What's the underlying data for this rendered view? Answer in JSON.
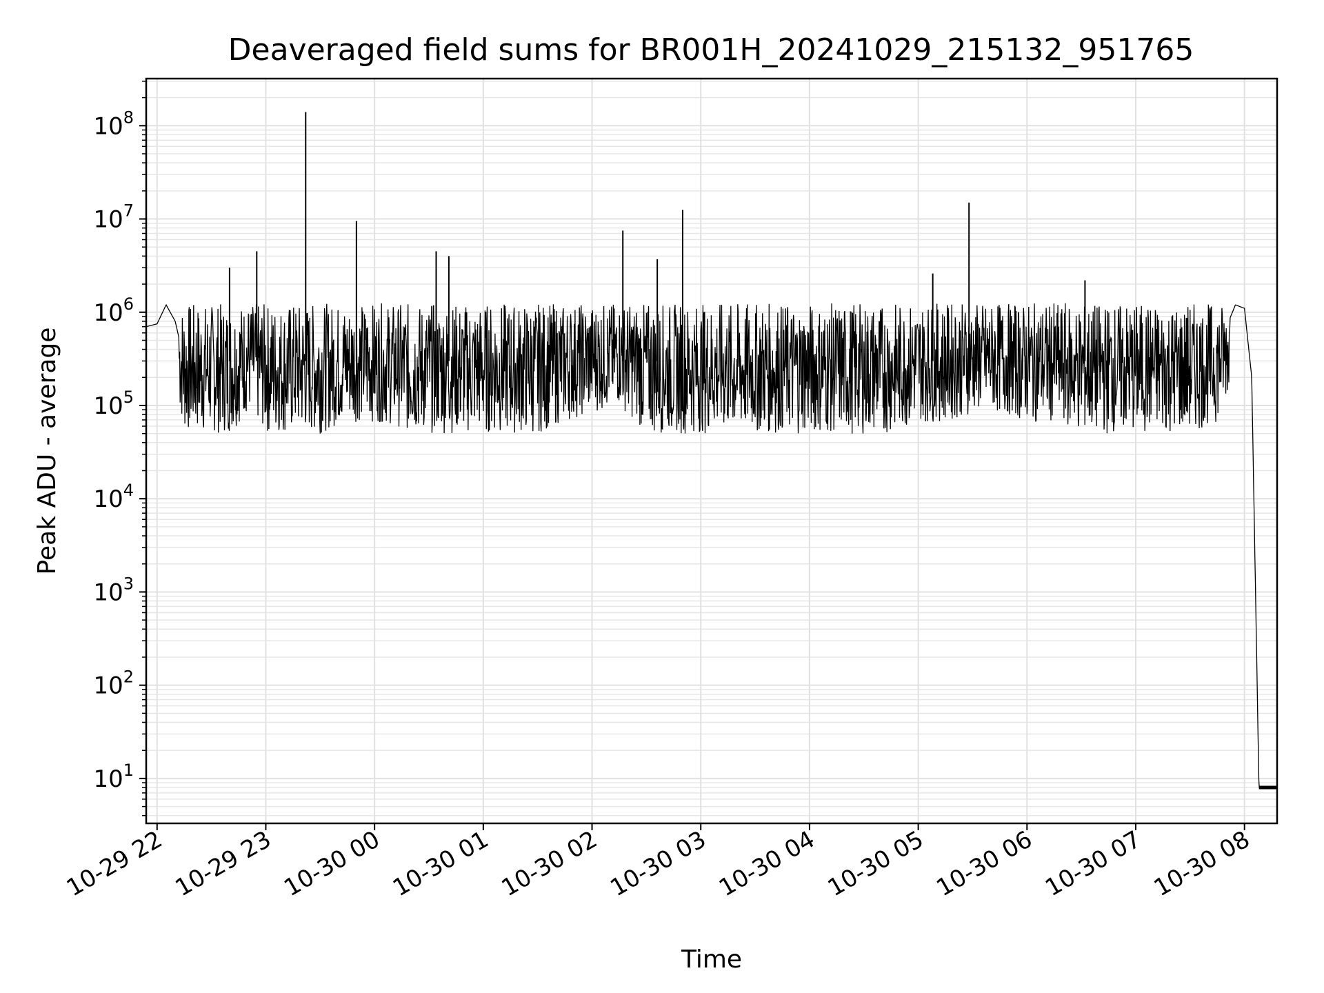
{
  "chart_data": {
    "type": "line",
    "title": "Deaveraged field sums for BR001H_20241029_215132_951765",
    "xlabel": "Time",
    "ylabel": "Peak ADU - average",
    "yscale": "log",
    "ylim": [
      3.3,
      320000000.0
    ],
    "xlim": [
      "2024-10-29 21:54",
      "2024-10-30 08:18"
    ],
    "grid": true,
    "x_tick_labels": [
      "10-29 22",
      "10-29 23",
      "10-30 00",
      "10-30 01",
      "10-30 02",
      "10-30 03",
      "10-30 04",
      "10-30 05",
      "10-30 06",
      "10-30 07",
      "10-30 08"
    ],
    "x_ticks": [
      "2024-10-29 22:00",
      "2024-10-29 23:00",
      "2024-10-30 00:00",
      "2024-10-30 01:00",
      "2024-10-30 02:00",
      "2024-10-30 03:00",
      "2024-10-30 04:00",
      "2024-10-30 05:00",
      "2024-10-30 06:00",
      "2024-10-30 07:00",
      "2024-10-30 08:00"
    ],
    "y_ticks": [
      {
        "base": "10",
        "exp": "1",
        "value": 10
      },
      {
        "base": "10",
        "exp": "2",
        "value": 100
      },
      {
        "base": "10",
        "exp": "3",
        "value": 1000
      },
      {
        "base": "10",
        "exp": "4",
        "value": 10000
      },
      {
        "base": "10",
        "exp": "5",
        "value": 100000
      },
      {
        "base": "10",
        "exp": "6",
        "value": 1000000
      },
      {
        "base": "10",
        "exp": "7",
        "value": 10000000
      },
      {
        "base": "10",
        "exp": "8",
        "value": 100000000
      }
    ],
    "line_color": "#000000",
    "series": [
      {
        "x": [
          "2024-10-29 21:54",
          "2024-10-29 22:00",
          "2024-10-29 22:05",
          "2024-10-29 22:10",
          "2024-10-29 22:15",
          "2024-10-29 22:20",
          "2024-10-29 22:30",
          "2024-10-29 22:40",
          "2024-10-29 22:50",
          "2024-10-29 23:00",
          "2024-10-29 23:10",
          "2024-10-29 23:20",
          "2024-10-29 23:30",
          "2024-10-29 23:45",
          "2024-10-30 00:00",
          "2024-10-30 00:15",
          "2024-10-30 00:30",
          "2024-10-30 00:45",
          "2024-10-30 01:00",
          "2024-10-30 01:15",
          "2024-10-30 01:30",
          "2024-10-30 01:45",
          "2024-10-30 02:00",
          "2024-10-30 02:15",
          "2024-10-30 02:30",
          "2024-10-30 02:45",
          "2024-10-30 03:00",
          "2024-10-30 03:15",
          "2024-10-30 03:30",
          "2024-10-30 03:45",
          "2024-10-30 04:00",
          "2024-10-30 04:15",
          "2024-10-30 04:30",
          "2024-10-30 04:45",
          "2024-10-30 05:00",
          "2024-10-30 05:15",
          "2024-10-30 05:30",
          "2024-10-30 05:45",
          "2024-10-30 06:00",
          "2024-10-30 06:15",
          "2024-10-30 06:30",
          "2024-10-30 06:45",
          "2024-10-30 07:00",
          "2024-10-30 07:15",
          "2024-10-30 07:30",
          "2024-10-30 07:45",
          "2024-10-30 07:55",
          "2024-10-30 08:00",
          "2024-10-30 08:04",
          "2024-10-30 08:08",
          "2024-10-30 08:18"
        ],
        "y": [
          700000,
          750000,
          1200000,
          800000,
          300000,
          200000,
          250000,
          300000,
          500000,
          300000,
          200000,
          250000,
          300000,
          400000,
          400000,
          350000,
          150000,
          120000,
          200000,
          200000,
          300000,
          400000,
          500000,
          600000,
          300000,
          200000,
          100000,
          80000,
          70000,
          70000,
          70000,
          200000,
          300000,
          300000,
          400000,
          400000,
          500000,
          500000,
          400000,
          400000,
          300000,
          300000,
          300000,
          300000,
          300000,
          400000,
          1200000,
          1100000,
          200000,
          8,
          8
        ]
      }
    ],
    "spikes": [
      {
        "x": "2024-10-29 22:40",
        "y": 3000000
      },
      {
        "x": "2024-10-29 22:55",
        "y": 4500000
      },
      {
        "x": "2024-10-29 23:22",
        "y": 140000000
      },
      {
        "x": "2024-10-29 23:50",
        "y": 9500000
      },
      {
        "x": "2024-10-30 00:34",
        "y": 4500000
      },
      {
        "x": "2024-10-30 00:41",
        "y": 4000000
      },
      {
        "x": "2024-10-30 02:17",
        "y": 7500000
      },
      {
        "x": "2024-10-30 02:36",
        "y": 3700000
      },
      {
        "x": "2024-10-30 02:50",
        "y": 12500000
      },
      {
        "x": "2024-10-30 05:08",
        "y": 2600000
      },
      {
        "x": "2024-10-30 05:28",
        "y": 15000000
      },
      {
        "x": "2024-10-30 06:32",
        "y": 2200000
      }
    ]
  }
}
